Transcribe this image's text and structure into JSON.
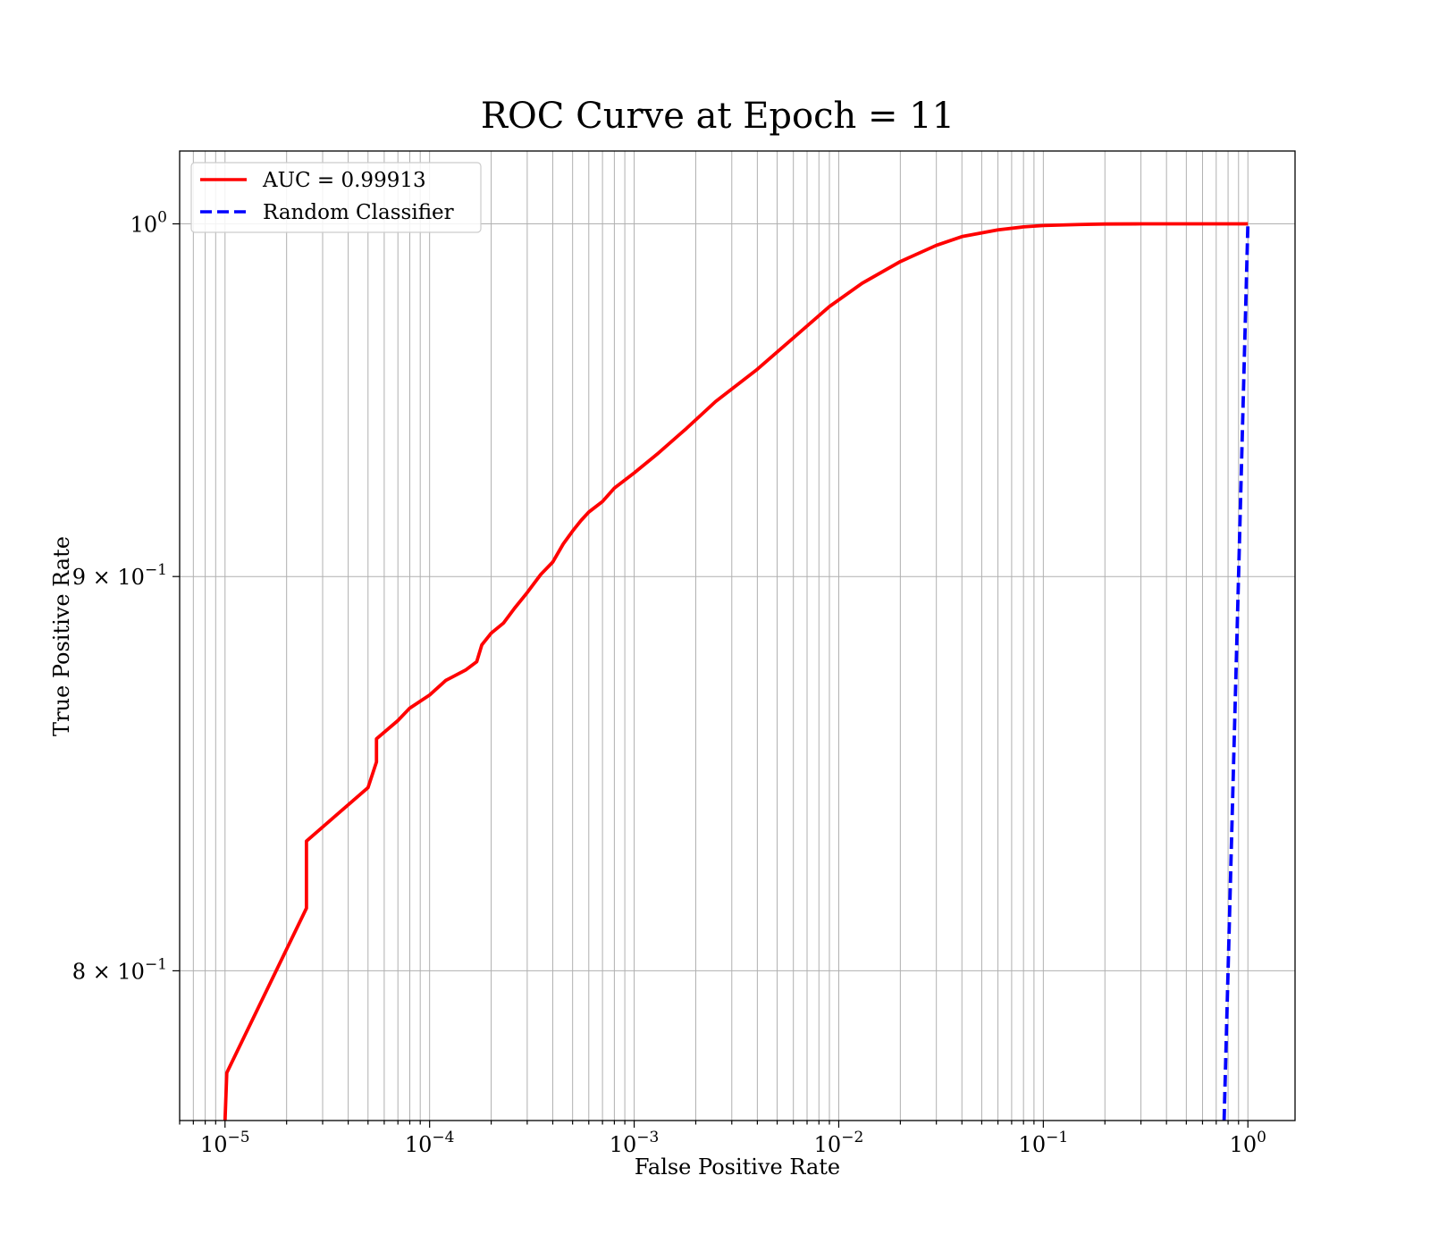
{
  "chart_data": {
    "type": "line",
    "title": "ROC Curve at Epoch = 11",
    "xlabel": "False Positive Rate",
    "ylabel": "True Positive Rate",
    "xscale": "log",
    "yscale": "log",
    "xlim": [
      6e-06,
      1.7
    ],
    "ylim": [
      0.765,
      1.022
    ],
    "grid": "both major and minor",
    "legend_position": "upper left",
    "x_ticks": [
      {
        "value": 1e-05,
        "base": "10",
        "exp": "−5"
      },
      {
        "value": 0.0001,
        "base": "10",
        "exp": "−4"
      },
      {
        "value": 0.001,
        "base": "10",
        "exp": "−3"
      },
      {
        "value": 0.01,
        "base": "10",
        "exp": "−2"
      },
      {
        "value": 0.1,
        "base": "10",
        "exp": "−1"
      },
      {
        "value": 1,
        "base": "10",
        "exp": "0"
      }
    ],
    "y_ticks": [
      {
        "value": 1.0,
        "base": "10",
        "exp": "0"
      },
      {
        "value": 0.9,
        "base": "9 × 10",
        "exp": "−1"
      },
      {
        "value": 0.8,
        "base": "8 × 10",
        "exp": "−1"
      }
    ],
    "series": [
      {
        "name": "AUC = 0.99913",
        "color": "#ff0000",
        "style": "solid",
        "x": [
          1e-05,
          1.02e-05,
          2.5e-05,
          2.5e-05,
          5e-05,
          5.5e-05,
          5.5e-05,
          7e-05,
          8e-05,
          0.0001,
          0.00012,
          0.00015,
          0.00017,
          0.00018,
          0.0002,
          0.00023,
          0.00026,
          0.0003,
          0.00035,
          0.0004,
          0.00045,
          0.0005,
          0.00055,
          0.0006,
          0.0007,
          0.0008,
          0.001,
          0.0013,
          0.0018,
          0.0025,
          0.004,
          0.006,
          0.009,
          0.013,
          0.02,
          0.03,
          0.04,
          0.06,
          0.08,
          0.1,
          0.15,
          0.2,
          0.3,
          0.5,
          0.7,
          1.0
        ],
        "y": [
          0.765,
          0.776,
          0.8151,
          0.8316,
          0.845,
          0.8515,
          0.8574,
          0.8621,
          0.8653,
          0.8687,
          0.8725,
          0.8752,
          0.8774,
          0.8818,
          0.8849,
          0.8876,
          0.8915,
          0.8957,
          0.9006,
          0.9039,
          0.9088,
          0.9123,
          0.9152,
          0.9175,
          0.9204,
          0.9241,
          0.9283,
          0.9336,
          0.9407,
          0.9483,
          0.9575,
          0.9665,
          0.9756,
          0.9824,
          0.9888,
          0.9936,
          0.9962,
          0.9982,
          0.9991,
          0.9995,
          0.9998,
          0.99995,
          1.0,
          1.0,
          1.0,
          1.0
        ]
      },
      {
        "name": "Random Classifier",
        "color": "#0000ff",
        "style": "dashed",
        "x": [
          0.765,
          0.8,
          0.85,
          0.9,
          0.95,
          1.0
        ],
        "y": [
          0.765,
          0.8,
          0.85,
          0.9,
          0.95,
          1.0
        ]
      }
    ]
  }
}
